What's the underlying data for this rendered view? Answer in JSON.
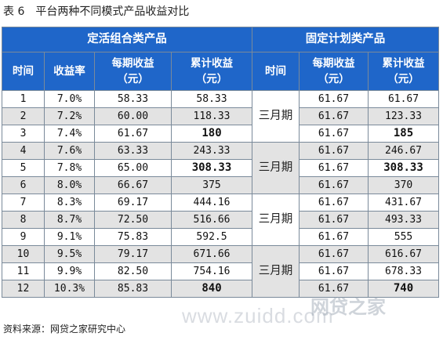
{
  "title": {
    "label": "表 6",
    "text": "平台两种不同模式产品收益对比"
  },
  "groups": {
    "left": "定活组合类产品",
    "right": "固定计划类产品"
  },
  "columns": {
    "time": "时间",
    "rate": "收益率",
    "period_income": [
      "每期收益",
      "（元）"
    ],
    "cumulative_income": [
      "累计收益",
      "（元）"
    ]
  },
  "rows": [
    {
      "t": "1",
      "rate": "7.0%",
      "inc": "58.33",
      "cum": "58.33",
      "finc": "61.67",
      "fcum": "61.67"
    },
    {
      "t": "2",
      "rate": "7.2%",
      "inc": "60.00",
      "cum": "118.33",
      "finc": "61.67",
      "fcum": "123.33"
    },
    {
      "t": "3",
      "rate": "7.4%",
      "inc": "61.67",
      "cum": "180",
      "finc": "61.67",
      "fcum": "185"
    },
    {
      "t": "4",
      "rate": "7.6%",
      "inc": "63.33",
      "cum": "243.33",
      "finc": "61.67",
      "fcum": "246.67"
    },
    {
      "t": "5",
      "rate": "7.8%",
      "inc": "65.00",
      "cum": "308.33",
      "finc": "61.67",
      "fcum": "308.33"
    },
    {
      "t": "6",
      "rate": "8.0%",
      "inc": "66.67",
      "cum": "375",
      "finc": "61.67",
      "fcum": "370"
    },
    {
      "t": "7",
      "rate": "8.3%",
      "inc": "69.17",
      "cum": "444.16",
      "finc": "61.67",
      "fcum": "431.67"
    },
    {
      "t": "8",
      "rate": "8.7%",
      "inc": "72.50",
      "cum": "516.66",
      "finc": "61.67",
      "fcum": "493.33"
    },
    {
      "t": "9",
      "rate": "9.1%",
      "inc": "75.83",
      "cum": "592.5",
      "finc": "61.67",
      "fcum": "555"
    },
    {
      "t": "10",
      "rate": "9.5%",
      "inc": "79.17",
      "cum": "671.66",
      "finc": "61.67",
      "fcum": "616.67"
    },
    {
      "t": "11",
      "rate": "9.9%",
      "inc": "82.50",
      "cum": "754.16",
      "finc": "61.67",
      "fcum": "678.33"
    },
    {
      "t": "12",
      "rate": "10.3%",
      "inc": "85.83",
      "cum": "840",
      "finc": "61.67",
      "fcum": "740"
    }
  ],
  "fixed_periods": [
    "三月期",
    "三月期",
    "三月期",
    "三月期"
  ],
  "source": "资料来源：网贷之家研究中心",
  "watermark": {
    "text": "www.zuidd.com",
    "brand": "网贷之家"
  },
  "colors": {
    "header_bg": "#1f66c9",
    "alt_row": "#e3e3e3",
    "border": "#7a8a9a"
  }
}
